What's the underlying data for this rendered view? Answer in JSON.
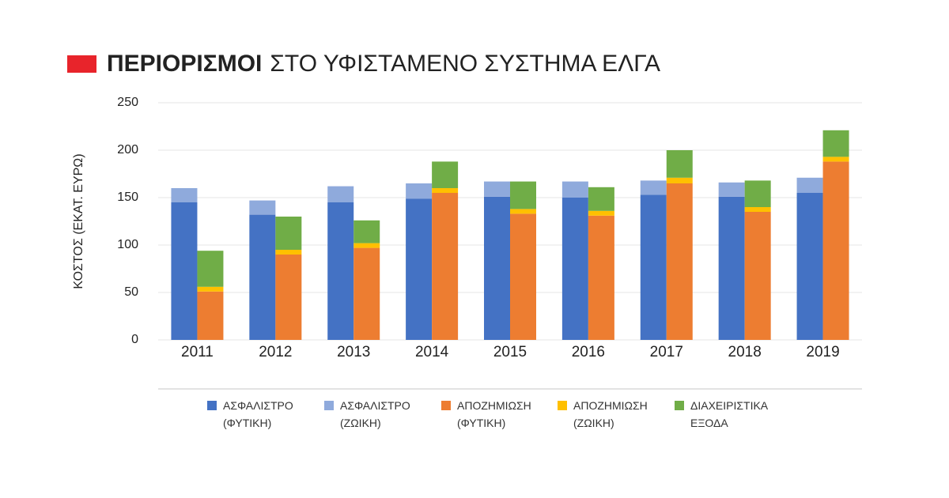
{
  "chart_data": {
    "type": "bar",
    "title_emphasis": "ΠΕΡΙΟΡΙΣΜΟΙ",
    "title": "ΣΤΟ ΥΦΙΣΤΑΜΕΝΟ ΣΥΣΤΗΜΑ ΕΛΓΑ",
    "y_label": "ΚΟΣΤΟΣ (ΕΚΑΤ. ΕΥΡΩ)",
    "categories": [
      "2011",
      "2012",
      "2013",
      "2014",
      "2015",
      "2016",
      "2017",
      "2018",
      "2019"
    ],
    "series": [
      {
        "name": "ΑΣΦΑΛΙΣΤΡΟ (ΦΥΤΙΚΗ)",
        "color": "#4472c4",
        "stack": 0,
        "values": [
          145,
          132,
          145,
          149,
          151,
          150,
          153,
          151,
          155
        ]
      },
      {
        "name": "ΑΣΦΑΛΙΣΤΡΟ (ΖΩΙΚΗ)",
        "color": "#8faadc",
        "stack": 0,
        "values": [
          15,
          15,
          17,
          16,
          16,
          17,
          15,
          15,
          16
        ]
      },
      {
        "name": "ΑΠΟΖΗΜΙΩΣΗ (ΦΥΤΙΚΗ)",
        "color": "#ed7d31",
        "stack": 1,
        "values": [
          51,
          90,
          97,
          155,
          133,
          131,
          165,
          135,
          188
        ]
      },
      {
        "name": "ΑΠΟΖΗΜΙΩΣΗ (ΖΩΙΚΗ)",
        "color": "#ffc000",
        "stack": 1,
        "values": [
          5,
          5,
          5,
          5,
          5,
          5,
          6,
          5,
          5
        ]
      },
      {
        "name": "ΔΙΑΧΕΙΡΙΣΤΙΚΑ ΕΞΟΔΑ",
        "color": "#70ad47",
        "stack": 1,
        "values": [
          38,
          35,
          24,
          28,
          29,
          25,
          29,
          28,
          28
        ]
      }
    ],
    "ylim": [
      0,
      250
    ],
    "yticks": [
      0,
      50,
      100,
      150,
      200,
      250
    ],
    "grid": true
  }
}
